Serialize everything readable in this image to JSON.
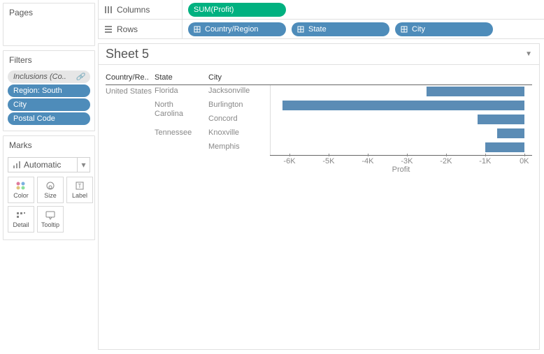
{
  "panels": {
    "pages_title": "Pages",
    "filters_title": "Filters",
    "marks_title": "Marks"
  },
  "filters": [
    {
      "label": "Inclusions (Co..",
      "style": "gray",
      "has_link_icon": true
    },
    {
      "label": "Region: South",
      "style": "blue",
      "has_link_icon": false
    },
    {
      "label": "City",
      "style": "blue",
      "has_link_icon": false
    },
    {
      "label": "Postal Code",
      "style": "blue",
      "has_link_icon": false
    }
  ],
  "marks": {
    "type_label": "Automatic",
    "buttons": [
      {
        "name": "Color"
      },
      {
        "name": "Size"
      },
      {
        "name": "Label"
      },
      {
        "name": "Detail"
      },
      {
        "name": "Tooltip"
      }
    ]
  },
  "shelves": {
    "columns_label": "Columns",
    "rows_label": "Rows",
    "column_pills": [
      {
        "label": "SUM(Profit)",
        "style": "green"
      }
    ],
    "row_pills": [
      {
        "label": "Country/Region",
        "style": "blue"
      },
      {
        "label": "State",
        "style": "blue"
      },
      {
        "label": "City",
        "style": "blue"
      }
    ]
  },
  "sheet": {
    "title": "Sheet 5",
    "headers": {
      "country": "Country/Re..",
      "state": "State",
      "city": "City"
    },
    "country_label": "United States",
    "axis": {
      "label": "Profit",
      "min": -6500,
      "max": 200,
      "ticks": [
        {
          "label": "-6K",
          "value": -6000
        },
        {
          "label": "-5K",
          "value": -5000
        },
        {
          "label": "-4K",
          "value": -4000
        },
        {
          "label": "-3K",
          "value": -3000
        },
        {
          "label": "-2K",
          "value": -2000
        },
        {
          "label": "-1K",
          "value": -1000
        },
        {
          "label": "0K",
          "value": 0
        }
      ]
    },
    "rows": [
      {
        "state": "Florida",
        "city": "Jacksonville",
        "value": -2500,
        "state_first": true
      },
      {
        "state": "North Carolina",
        "city": "Burlington",
        "value": -6200,
        "state_first": true
      },
      {
        "state": "",
        "city": "Concord",
        "value": -1200,
        "state_first": false
      },
      {
        "state": "Tennessee",
        "city": "Knoxville",
        "value": -700,
        "state_first": true
      },
      {
        "state": "",
        "city": "Memphis",
        "value": -1000,
        "state_first": false
      }
    ],
    "colors": {
      "bar": "#5b8cb5",
      "pill_blue": "#4e8cba",
      "pill_green": "#00b180"
    }
  }
}
